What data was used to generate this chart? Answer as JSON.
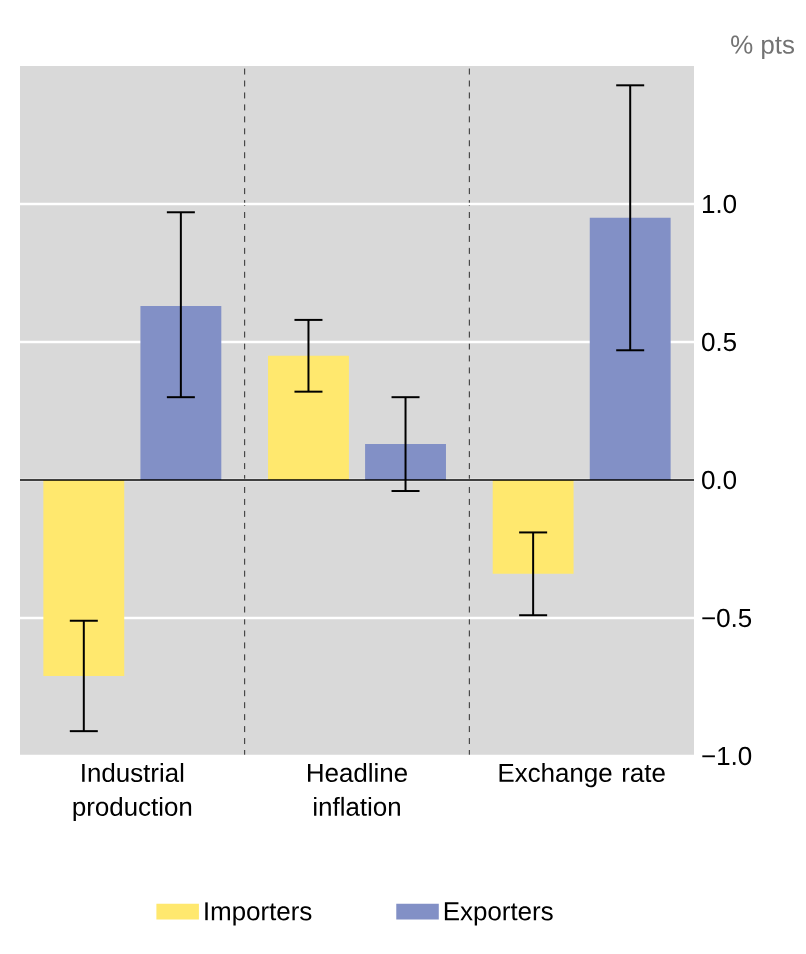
{
  "chart_data": {
    "type": "bar",
    "ylabel": "% pts",
    "categories": [
      "Industrial production",
      "Headline inflation",
      "Exchange rate"
    ],
    "series": [
      {
        "name": "Importers",
        "color": "#ffe86e",
        "values": [
          -0.71,
          0.45,
          -0.34
        ],
        "errors": [
          [
            -0.91,
            -0.51
          ],
          [
            0.32,
            0.58
          ],
          [
            -0.49,
            -0.19
          ]
        ]
      },
      {
        "name": "Exporters",
        "color": "#8290c6",
        "values": [
          0.63,
          0.13,
          0.95
        ],
        "errors": [
          [
            0.3,
            0.97
          ],
          [
            -0.04,
            0.3
          ],
          [
            0.47,
            1.43
          ]
        ]
      }
    ],
    "ylim": [
      -1.0,
      1.5
    ],
    "yticks": [
      {
        "value": -1.0,
        "label": "−1.0"
      },
      {
        "value": -0.5,
        "label": "−0.5"
      },
      {
        "value": 0.0,
        "label": "0.0"
      },
      {
        "value": 0.5,
        "label": "0.5"
      },
      {
        "value": 1.0,
        "label": "1.0"
      }
    ],
    "grid": "y",
    "legend": "bottom"
  }
}
